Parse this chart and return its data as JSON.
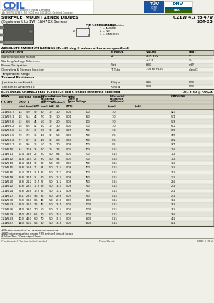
{
  "title_left1": "SURFACE  MOUNT ZENER DIODES",
  "title_left2": "(Equivalent to 1W  1N47XX Series)",
  "title_right1": "CZ1W 4.7 to 47V",
  "title_right2": "SOT-23",
  "company_name": "CDIL",
  "company_full": "Continental Device India Limited",
  "company_sub": "An ISO/TS 16949, ISO 9001 and ISO 14001 Certified Company",
  "abs_max_title": "ABSOLUTE MAXIMUM RATINGS (Ta=25 deg C unless otherwise specified)",
  "abs_rows": [
    [
      "Working Voltage Range",
      "VZ",
      "4.7- 47V",
      "V"
    ],
    [
      "Working Voltage Tolerance",
      "",
      "+/- 5",
      "%"
    ],
    [
      "Power Dissipation",
      "Ptot",
      "600",
      "mW"
    ],
    [
      "Operating & Storage Junction",
      "Tj Tstg",
      "-55 to +150",
      "deg C"
    ],
    [
      "Temperature Range",
      "",
      "",
      ""
    ],
    [
      "Thermal Resistance",
      "",
      "",
      ""
    ],
    [
      "Junction to Ambient#",
      "Rth j-a",
      "430",
      "K/W"
    ],
    [
      "Junction to Ambient##",
      "Rth j-a",
      "500",
      "K/W"
    ]
  ],
  "elec_title": "ELECTRICAL CHARACTERISTICS(Ta=25 deg C Unless otherwise Specified)",
  "elec_title_right": "VF= 1.5V @ 200mA",
  "elec_rows": [
    [
      "CZ1W 4.7",
      "4.4",
      "5.0",
      "50",
      "80",
      "10",
      "1.0",
      "0.01",
      "500",
      "1.0",
      "4Z7"
    ],
    [
      "CZ1W 5.1",
      "4.8",
      "5.4",
      "48",
      "7.0",
      "10",
      "1.0",
      "0.01",
      "550",
      "1.0",
      "5Z1"
    ],
    [
      "CZ1W 5.6",
      "5.2",
      "6.0",
      "45",
      "5.0",
      "10",
      "2.0",
      "0.02",
      "600",
      "1.0",
      "5Z6"
    ],
    [
      "CZ1W 6.2",
      "5.8",
      "6.6",
      "41",
      "2.0",
      "10",
      "3.0",
      "0.04",
      "700",
      "1.0",
      "6Z2"
    ],
    [
      "CZ1W 6.8",
      "6.4",
      "7.2",
      "37",
      "3.5",
      "10",
      "4.0",
      "0.05",
      "700",
      "1.0",
      "6Z8"
    ],
    [
      "CZ1W 7.5",
      "7.0",
      "7.9",
      "34",
      "4.0",
      "10",
      "5.0",
      "0.06",
      "700",
      "0.5",
      "7Z5"
    ],
    [
      "CZ1W 8.2",
      "7.7",
      "8.7",
      "31",
      "4.5",
      "10",
      "6.0",
      "0.06",
      "700",
      "0.5",
      "8Z2"
    ],
    [
      "CZ1W 9.1",
      "8.5",
      "9.6",
      "28",
      "5.0",
      "10",
      "7.0",
      "0.06",
      "700",
      "0.5",
      "9Z1"
    ],
    [
      "CZ1W 10",
      "9.4",
      "10.6",
      "25",
      "7.0",
      "10",
      "7.6",
      "0.07",
      "700",
      "0.25",
      "10Z"
    ],
    [
      "CZ1W 11",
      "10.4",
      "11.6",
      "23",
      "8.0",
      "5.0",
      "8.4",
      "0.07",
      "700",
      "0.25",
      "11Z"
    ],
    [
      "CZ1W 12",
      "11.4",
      "12.7",
      "21",
      "9.0",
      "5.0",
      "9.1",
      "0.07",
      "700",
      "0.25",
      "12Z"
    ],
    [
      "CZ1W 13",
      "12.4",
      "14.1",
      "19",
      "10",
      "5.0",
      "9.9",
      "0.07",
      "700",
      "0.25",
      "13Z"
    ],
    [
      "CZ1W 15",
      "13.8",
      "15.6",
      "17",
      "14",
      "5.0",
      "11.4",
      "0.08",
      "700",
      "0.25",
      "15Z"
    ],
    [
      "CZ1W 16",
      "15.3",
      "17.1",
      "15.5",
      "16",
      "5.0",
      "12.2",
      "0.08",
      "700",
      "0.25",
      "16Z"
    ],
    [
      "CZ1W 18",
      "16.8",
      "19.1",
      "14",
      "20",
      "5.0",
      "13.7",
      "0.08",
      "750",
      "0.25",
      "18Z"
    ],
    [
      "CZ1W 20",
      "18.8",
      "21.2",
      "12.5",
      "22",
      "5.0",
      "15.2",
      "0.08",
      "750",
      "0.25",
      "20Z"
    ],
    [
      "CZ1W 22",
      "20.8",
      "23.3",
      "11.5",
      "23",
      "5.0",
      "16.7",
      "0.08",
      "750",
      "0.25",
      "22Z"
    ],
    [
      "CZ1W 24",
      "22.8",
      "25.6",
      "10.5",
      "25",
      "5.0",
      "18.2",
      "0.08",
      "750",
      "0.25",
      "24Z"
    ],
    [
      "CZ1W 27",
      "25.1",
      "28.9",
      "9.5",
      "35",
      "5.0",
      "20.6",
      "0.09",
      "750",
      "0.25",
      "27Z"
    ],
    [
      "CZ1W 30",
      "28.0",
      "32.0",
      "8.5",
      "40",
      "5.0",
      "22.8",
      "0.09",
      "1000",
      "0.25",
      "30Z"
    ],
    [
      "CZ1W 33",
      "31.0",
      "35.0",
      "7.5",
      "45",
      "5.0",
      "25.1",
      "0.09",
      "1000",
      "0.25",
      "33Z"
    ],
    [
      "CZ1W 36",
      "34.0",
      "38.0",
      "7.0",
      "50",
      "5.0",
      "27.4",
      "0.09",
      "1000",
      "0.25",
      "36Z"
    ],
    [
      "CZ1W 39",
      "37.0",
      "41.0",
      "6.5",
      "60",
      "5.0",
      "29.7",
      "0.09",
      "1000",
      "0.25",
      "39Z"
    ],
    [
      "CZ1W 43",
      "40.0",
      "46.0",
      "6.0",
      "70",
      "5.0",
      "32.7",
      "0.09",
      "1500",
      "0.25",
      "43Z"
    ],
    [
      "CZ1W 47",
      "44.0",
      "50.0",
      "5.5",
      "80",
      "5.0",
      "35.8",
      "0.09",
      "1500",
      "0.25",
      "47Z"
    ]
  ],
  "footnotes": [
    "#Device mounted on a ceramic alumina.",
    "##Device mounted on an FR5 printed circuit board",
    "$Pulse Test 20ms<tp<50ms"
  ],
  "footer_left": "Continental Device India Limited",
  "footer_center": "Data Sheet",
  "footer_right": "Page 1 of 2",
  "bg_color": "#f0efe8",
  "header_bg": "#d0cfc0",
  "row_alt": "#e4e3d8",
  "border_color": "#888877",
  "text_color": "#111111"
}
